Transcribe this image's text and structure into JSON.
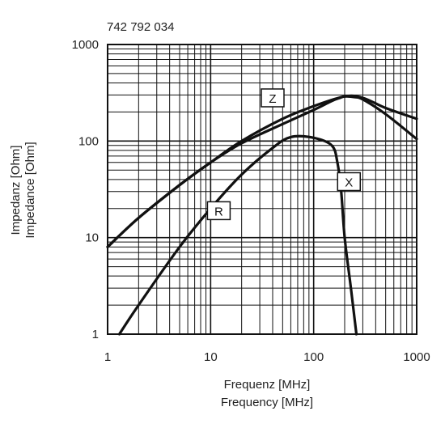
{
  "chart_data": {
    "type": "line",
    "title": "742 792 034",
    "xlabel": [
      "Frequenz [MHz]",
      "Frequency [MHz]"
    ],
    "ylabel": [
      "Impedanz [Ohm]",
      "Impedance [Ohm]"
    ],
    "x_scale": "log",
    "y_scale": "log",
    "xlim": [
      1,
      1000
    ],
    "ylim": [
      1,
      1000
    ],
    "grid": true,
    "x_ticks": [
      1,
      10,
      100,
      1000
    ],
    "x_tick_labels": [
      "1",
      "10",
      "100",
      "1000"
    ],
    "y_ticks": [
      1,
      10,
      100,
      1000
    ],
    "y_tick_labels": [
      "1",
      "10",
      "100",
      "1000"
    ],
    "series": [
      {
        "name": "Z",
        "x": [
          1,
          2,
          5,
          10,
          20,
          50,
          100,
          200,
          300,
          500,
          1000
        ],
        "y": [
          8,
          16,
          35,
          60,
          100,
          170,
          230,
          290,
          280,
          220,
          170
        ]
      },
      {
        "name": "X",
        "x": [
          1,
          2,
          5,
          10,
          20,
          50,
          100,
          150,
          180,
          200,
          250,
          300,
          500,
          1000
        ],
        "y": [
          8,
          16,
          35,
          60,
          95,
          150,
          210,
          260,
          280,
          290,
          285,
          270,
          190,
          105
        ]
      },
      {
        "name": "R",
        "x": [
          1.3,
          2,
          5,
          10,
          20,
          40,
          60,
          100,
          150,
          170,
          185,
          200,
          230,
          260
        ],
        "y": [
          1,
          2,
          8,
          20,
          45,
          85,
          110,
          108,
          90,
          60,
          30,
          10,
          3,
          1
        ]
      }
    ],
    "annotations": [
      {
        "text": "Z",
        "x": 40,
        "y": 280
      },
      {
        "text": "X",
        "x": 220,
        "y": 38
      },
      {
        "text": "R",
        "x": 12,
        "y": 19
      }
    ]
  }
}
